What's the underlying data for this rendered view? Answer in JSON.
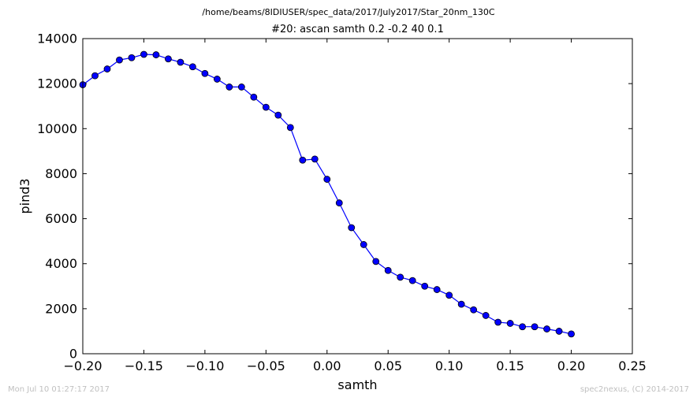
{
  "header": {
    "path": "/home/beams/8IDIUSER/spec_data/2017/July2017/Star_20nm_130C"
  },
  "footer": {
    "timestamp": "Mon Jul 10 01:27:17 2017",
    "credit": "spec2nexus, (C) 2014-2017"
  },
  "chart_data": {
    "type": "line",
    "title": "#20: ascan  samth 0.2 -0.2  40 0.1",
    "xlabel": "samth",
    "ylabel": "pind3",
    "xlim": [
      -0.2,
      0.25
    ],
    "ylim": [
      0,
      14000
    ],
    "xticks": [
      -0.2,
      -0.15,
      -0.1,
      -0.05,
      0.0,
      0.05,
      0.1,
      0.15,
      0.2,
      0.25
    ],
    "xtick_labels": [
      "−0.20",
      "−0.15",
      "−0.10",
      "−0.05",
      "0.00",
      "0.05",
      "0.10",
      "0.15",
      "0.20",
      "0.25"
    ],
    "yticks": [
      0,
      2000,
      4000,
      6000,
      8000,
      10000,
      12000,
      14000
    ],
    "ytick_labels": [
      "0",
      "2000",
      "4000",
      "6000",
      "8000",
      "10000",
      "12000",
      "14000"
    ],
    "line_color": "#0000ff",
    "marker_color": "#0000ff",
    "series": [
      {
        "x": [
          -0.2,
          -0.19,
          -0.18,
          -0.17,
          -0.16,
          -0.15,
          -0.14,
          -0.13,
          -0.12,
          -0.11,
          -0.1,
          -0.09,
          -0.08,
          -0.07,
          -0.06,
          -0.05,
          -0.04,
          -0.03,
          -0.02,
          -0.01,
          0.0,
          0.01,
          0.02,
          0.03,
          0.04,
          0.05,
          0.06,
          0.07,
          0.08,
          0.09,
          0.1,
          0.11,
          0.12,
          0.13,
          0.14,
          0.15,
          0.16,
          0.17,
          0.18,
          0.19,
          0.2
        ],
        "y": [
          11950,
          12350,
          12650,
          13050,
          13150,
          13300,
          13280,
          13100,
          12950,
          12750,
          12450,
          12200,
          11850,
          11850,
          11400,
          10950,
          10600,
          10050,
          8600,
          8650,
          7750,
          6700,
          5600,
          4850,
          4100,
          3700,
          3400,
          3250,
          3000,
          2850,
          2600,
          2200,
          1950,
          1700,
          1400,
          1350,
          1200,
          1200,
          1100,
          1000,
          880
        ]
      }
    ]
  }
}
